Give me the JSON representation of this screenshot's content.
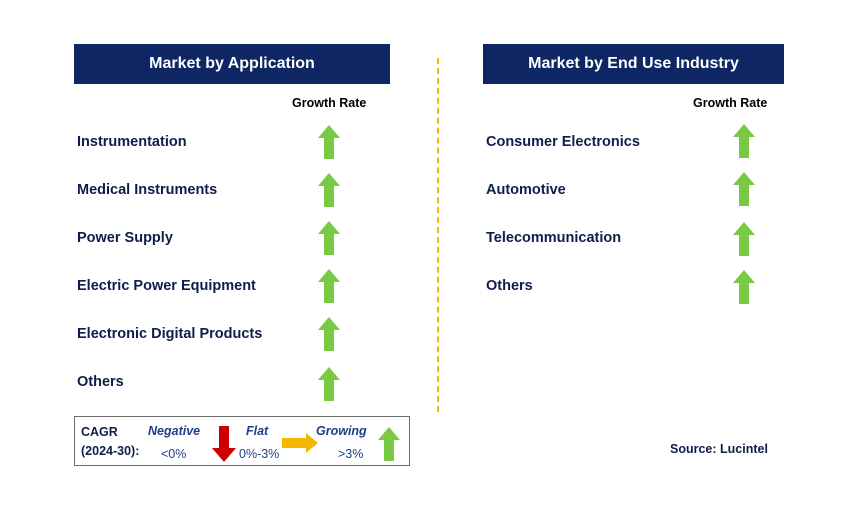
{
  "left_panel": {
    "title": "Market by Application",
    "growth_rate_label": "Growth Rate",
    "items": [
      {
        "label": "Instrumentation",
        "trend": "growing"
      },
      {
        "label": "Medical Instruments",
        "trend": "growing"
      },
      {
        "label": "Power Supply",
        "trend": "growing"
      },
      {
        "label": "Electric Power Equipment",
        "trend": "growing"
      },
      {
        "label": "Electronic Digital Products",
        "trend": "growing"
      },
      {
        "label": "Others",
        "trend": "growing"
      }
    ]
  },
  "right_panel": {
    "title": "Market by End Use Industry",
    "growth_rate_label": "Growth Rate",
    "items": [
      {
        "label": "Consumer Electronics",
        "trend": "growing"
      },
      {
        "label": "Automotive",
        "trend": "growing"
      },
      {
        "label": "Telecommunication",
        "trend": "growing"
      },
      {
        "label": "Others",
        "trend": "growing"
      }
    ]
  },
  "legend": {
    "cagr_line1": "CAGR",
    "cagr_line2": "(2024-30):",
    "negative_label": "Negative",
    "negative_range": "<0%",
    "flat_label": "Flat",
    "flat_range": "0%-3%",
    "growing_label": "Growing",
    "growing_range": ">3%"
  },
  "source": "Source: Lucintel",
  "colors": {
    "header_bg": "#0e2663",
    "growing_arrow": "#7ac943",
    "negative_arrow": "#cc0000",
    "flat_arrow": "#f5b800",
    "divider": "#f5b800"
  },
  "icons": {
    "growing": "arrow-up-icon",
    "negative": "arrow-down-icon",
    "flat": "arrow-right-icon"
  }
}
